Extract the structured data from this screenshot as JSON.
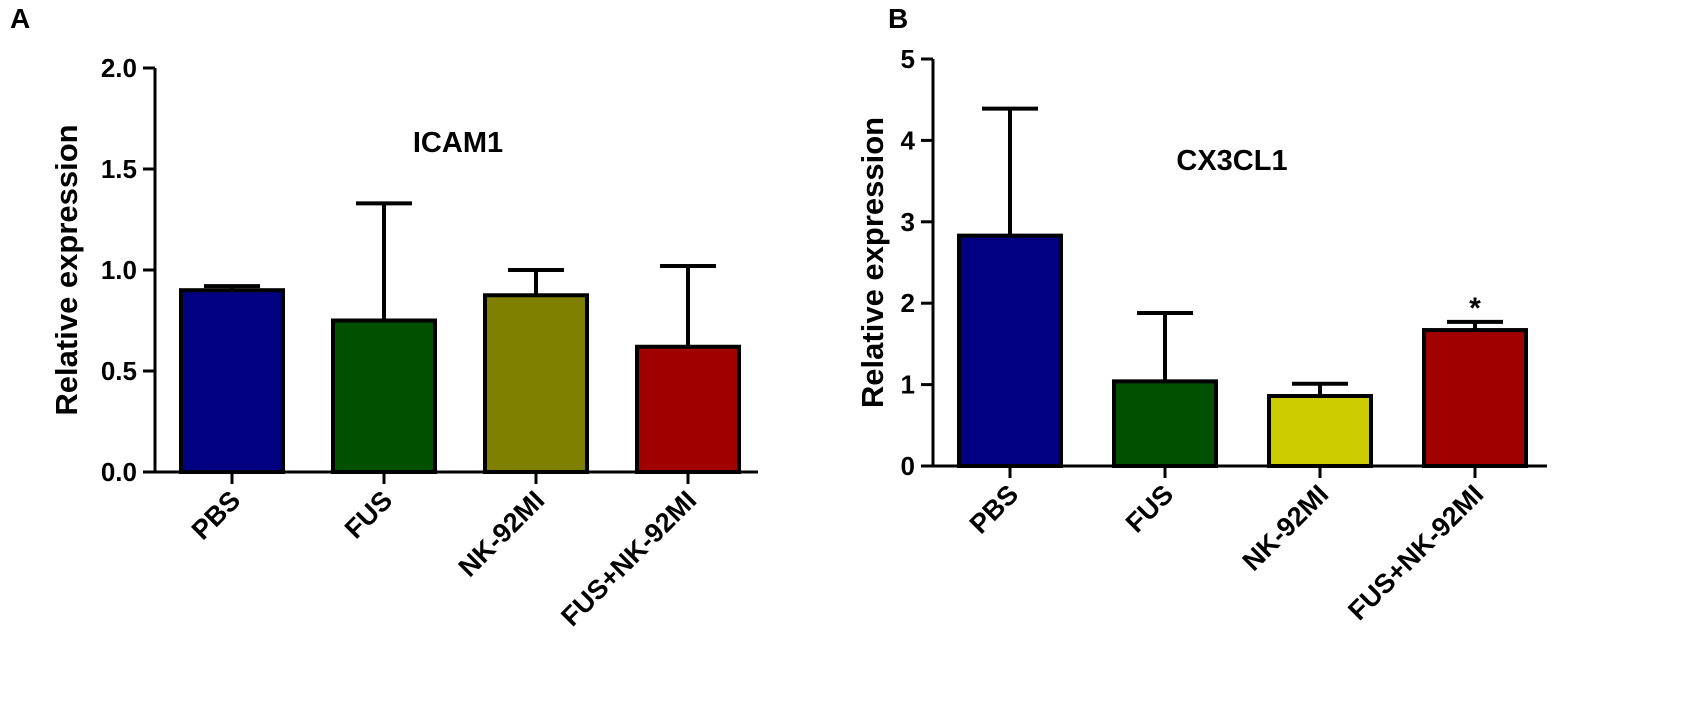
{
  "figure": {
    "panels": [
      "A",
      "B"
    ]
  },
  "chart_data": [
    {
      "panel": "A",
      "type": "bar",
      "title": "ICAM1",
      "xlabel": "",
      "ylabel": "Relative expression",
      "ylim": [
        0,
        2.0
      ],
      "yticks": [
        0.0,
        0.5,
        1.0,
        1.5,
        2.0
      ],
      "ytick_labels": [
        "0.0",
        "0.5",
        "1.0",
        "1.5",
        "2.0"
      ],
      "categories": [
        "PBS",
        "FUS",
        "NK-92MI",
        "FUS+NK-92MI"
      ],
      "values": [
        0.9,
        0.75,
        0.875,
        0.62
      ],
      "error_upper": [
        0.02,
        0.58,
        0.125,
        0.4
      ],
      "colors": [
        "#000080",
        "#005000",
        "#808000",
        "#a00000"
      ],
      "annotations": [
        "",
        "",
        "",
        ""
      ],
      "grid": false
    },
    {
      "panel": "B",
      "type": "bar",
      "title": "CX3CL1",
      "xlabel": "",
      "ylabel": "Relative expression",
      "ylim": [
        0,
        5
      ],
      "yticks": [
        0,
        1,
        2,
        3,
        4,
        5
      ],
      "ytick_labels": [
        "0",
        "1",
        "2",
        "3",
        "4",
        "5"
      ],
      "categories": [
        "PBS",
        "FUS",
        "NK-92MI",
        "FUS+NK-92MI"
      ],
      "values": [
        2.83,
        1.04,
        0.86,
        1.67
      ],
      "error_upper": [
        1.56,
        0.84,
        0.15,
        0.1
      ],
      "colors": [
        "#000080",
        "#005000",
        "#cccc00",
        "#a00000"
      ],
      "annotations": [
        "",
        "",
        "",
        "*"
      ],
      "grid": false
    }
  ]
}
